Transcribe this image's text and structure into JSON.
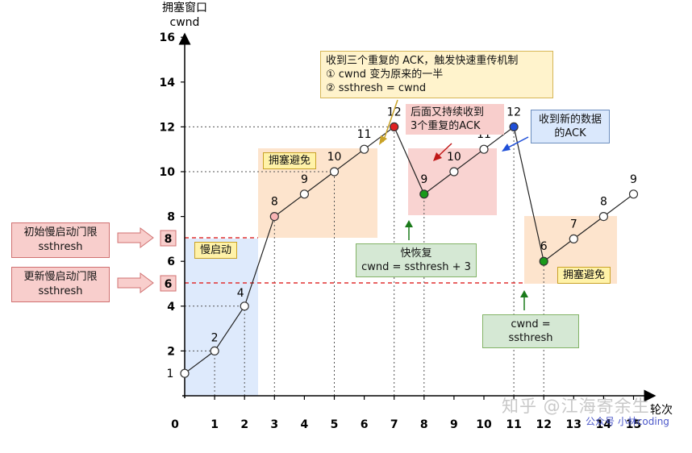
{
  "y_axis": {
    "title": "拥塞窗口",
    "subtitle": "cwnd",
    "ticks": [
      2,
      4,
      6,
      8,
      10,
      12,
      14,
      16
    ]
  },
  "x_axis": {
    "title": "轮次",
    "ticks": [
      0,
      1,
      2,
      3,
      4,
      5,
      6,
      7,
      8,
      9,
      10,
      11,
      12,
      13,
      14,
      15
    ]
  },
  "chart_data": {
    "type": "line",
    "x_label": "轮次",
    "y_label": "拥塞窗口 cwnd",
    "xlim": [
      0,
      15
    ],
    "ylim": [
      0,
      16
    ],
    "series": [
      {
        "values": [
          [
            0,
            1
          ],
          [
            1,
            2
          ],
          [
            2,
            4
          ],
          [
            3,
            8
          ],
          [
            4,
            9
          ],
          [
            5,
            10
          ],
          [
            6,
            11
          ],
          [
            7,
            12
          ],
          [
            8,
            9
          ],
          [
            9,
            10
          ],
          [
            10,
            11
          ],
          [
            11,
            12
          ],
          [
            12,
            6
          ],
          [
            13,
            7
          ],
          [
            14,
            8
          ],
          [
            15,
            9
          ]
        ]
      }
    ],
    "point_labels": [
      "1",
      "2",
      "4",
      "8",
      "9",
      "10",
      "11",
      "12",
      "9",
      "10",
      "11",
      "12",
      "6",
      "7",
      "8",
      "9"
    ],
    "thresholds": [
      8,
      6
    ]
  },
  "colors": {
    "slow_start": "#dae8fc",
    "congestion_avoid": "#fde1c8",
    "fast_recovery": "#f8cecc",
    "threshold_line": "#e03030",
    "triple_ack_point": "#e02020",
    "fast_recovery_point": "#1a9a1a",
    "new_ack_point": "#1f4fd8"
  },
  "labels": {
    "slow_start": "慢启动",
    "congestion_avoid_1": "拥塞避免",
    "congestion_avoid_2": "拥塞避免",
    "initial_threshold_line1": "初始慢启动门限",
    "initial_threshold_line2": "ssthresh",
    "initial_threshold_value": "8",
    "new_threshold_line1": "更新慢启动门限",
    "new_threshold_line2": "ssthresh",
    "new_threshold_value": "6"
  },
  "notes": {
    "triple_ack": {
      "line1": "收到三个重复的 ACK，触发快速重传机制",
      "line2": "① cwnd 变为原来的一半",
      "line3": "② ssthresh = cwnd"
    },
    "continued": {
      "line1": "后面又持续收到",
      "line2": "3个重复的ACK"
    },
    "new_ack": {
      "line1": "收到新的数据",
      "line2": "的ACK"
    },
    "fast_recovery": {
      "line1": "快恢复",
      "line2": "cwnd = ssthresh + 3"
    },
    "reset": {
      "line1": "cwnd = ssthresh"
    }
  },
  "watermark": {
    "text": "知乎 @江海寄余生",
    "sub": "公众号 小林coding"
  }
}
